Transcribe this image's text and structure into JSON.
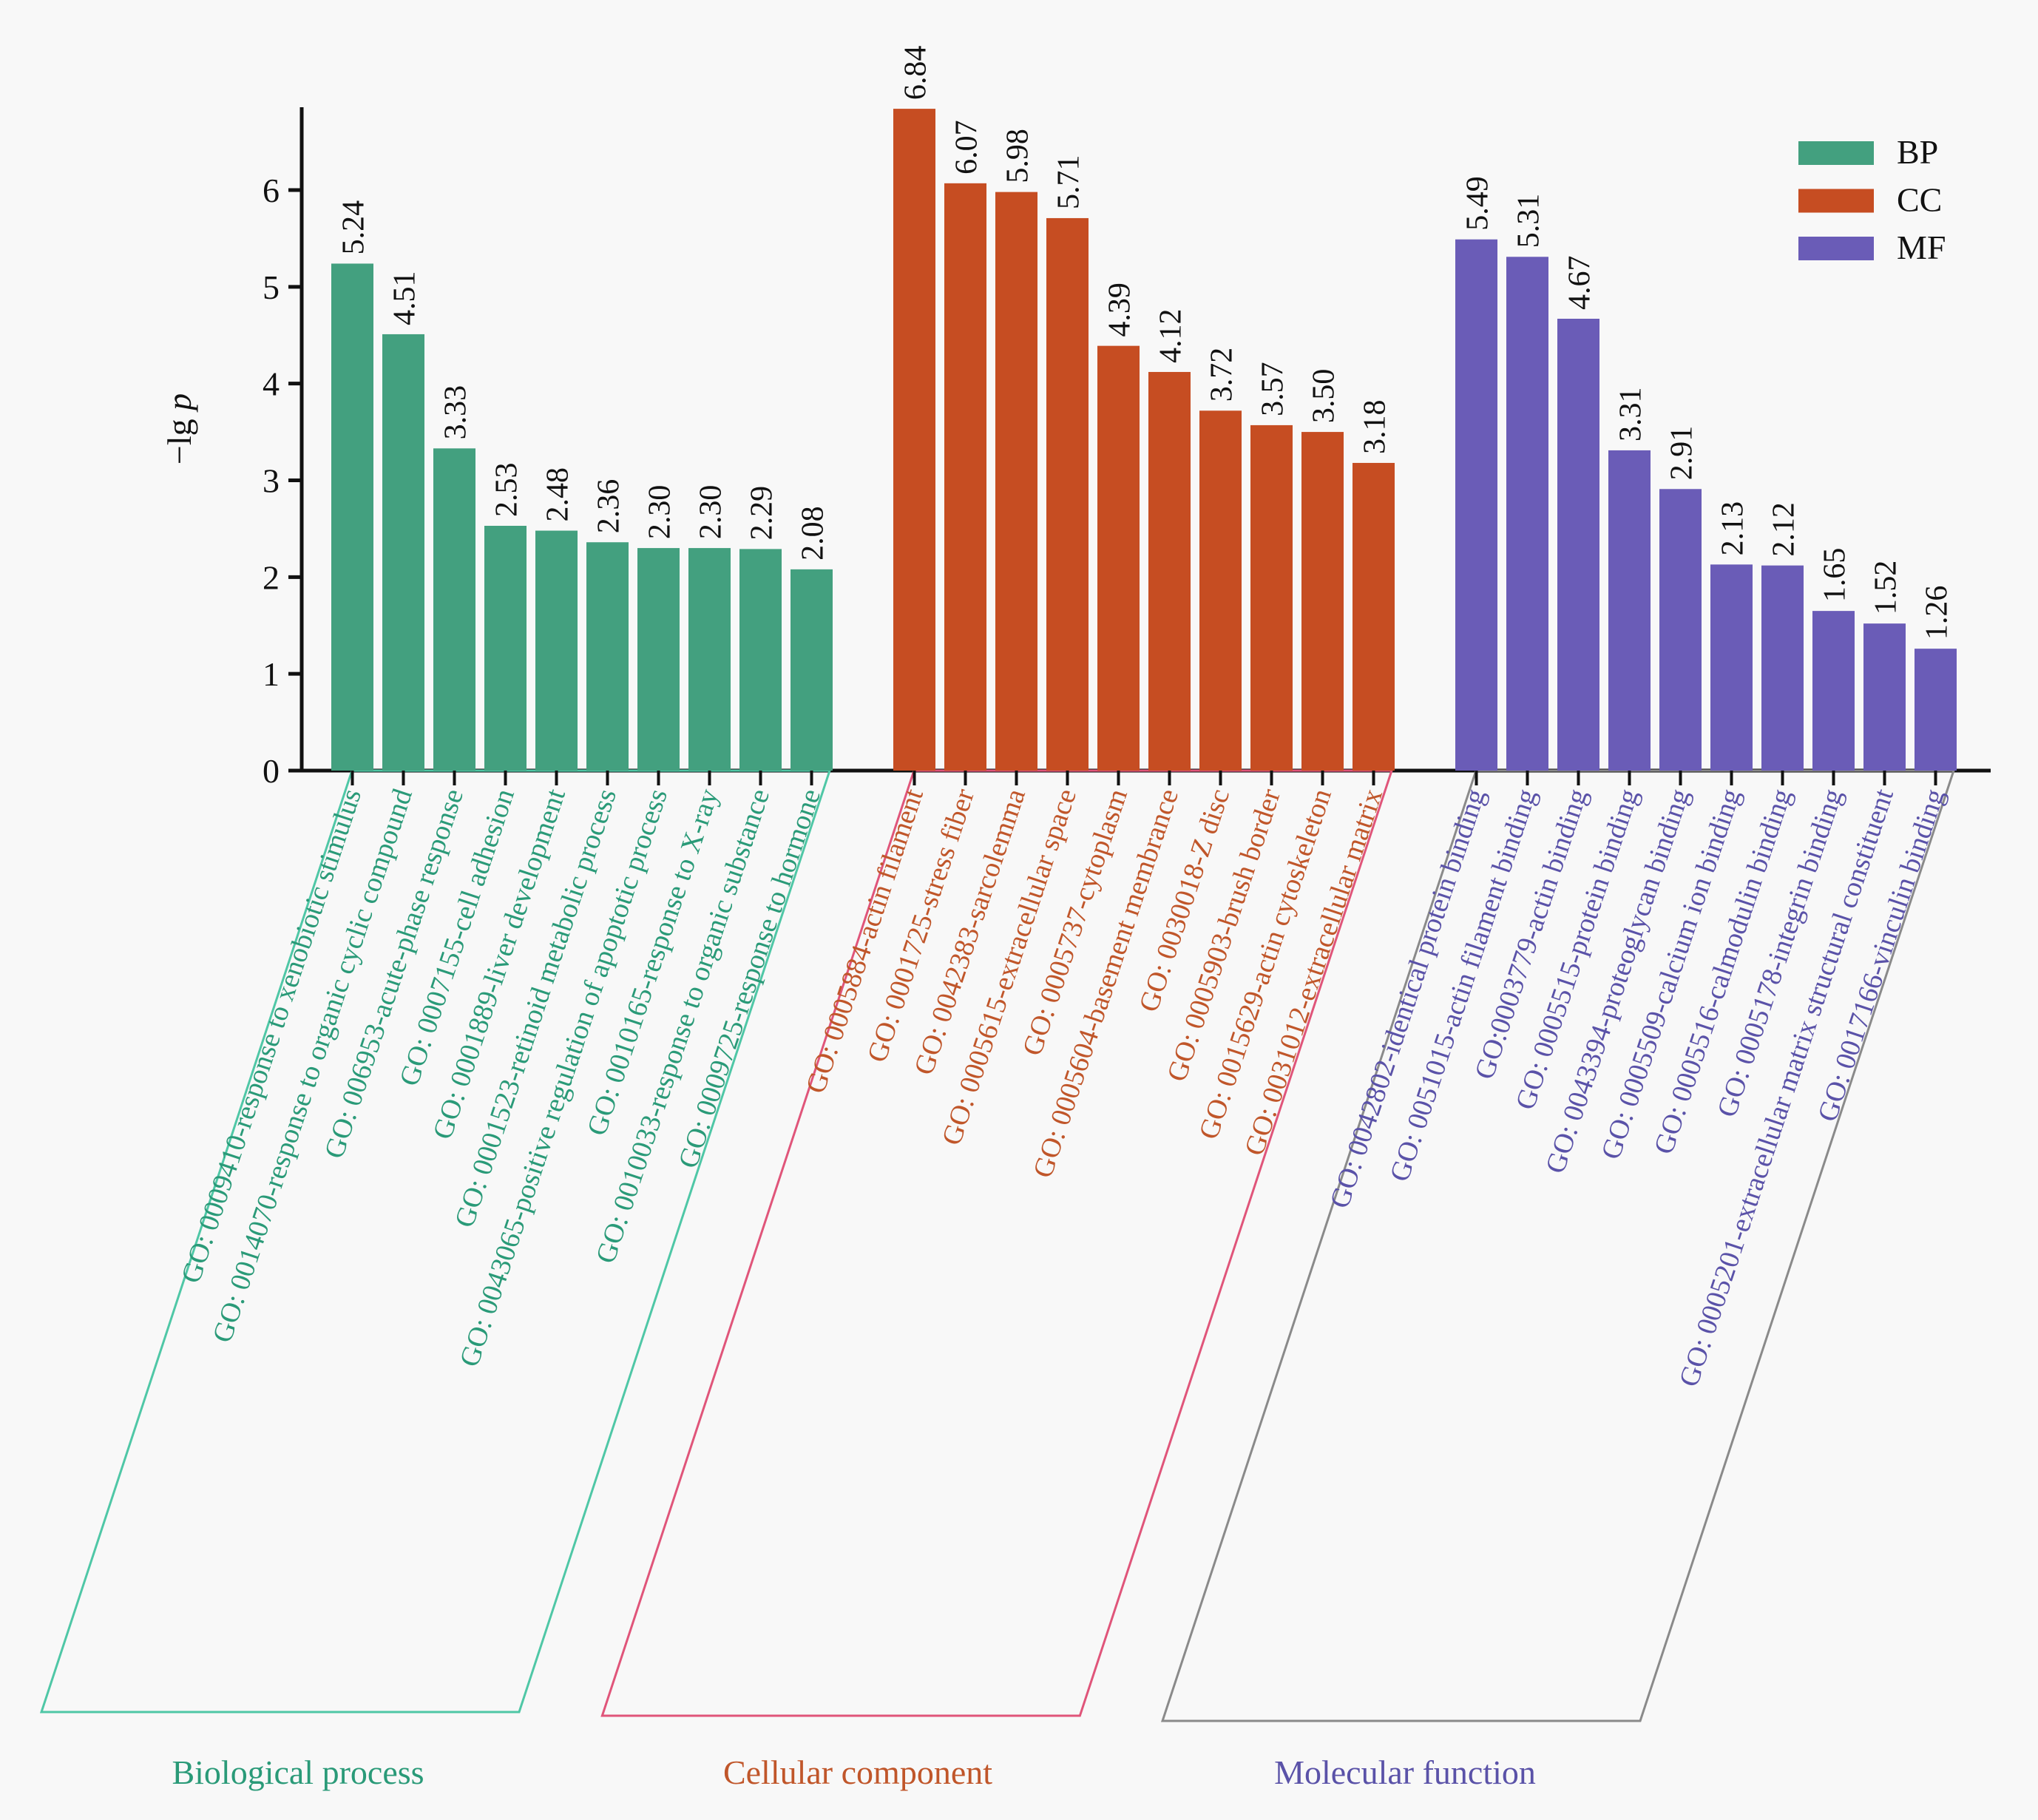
{
  "chart_data": {
    "type": "bar",
    "title": "",
    "xlabel": "",
    "ylabel": "−lg p",
    "ylabel_parts": {
      "prefix": "−lg ",
      "italic": "p"
    },
    "ylim": [
      0,
      6.84
    ],
    "yticks": [
      0,
      1,
      2,
      3,
      4,
      5,
      6
    ],
    "grid": false,
    "legend": {
      "position": "top-right",
      "entries": [
        {
          "name": "BP",
          "color": "#43a07f"
        },
        {
          "name": "CC",
          "color": "#c64d22"
        },
        {
          "name": "MF",
          "color": "#6a5cb7"
        }
      ]
    },
    "groups": [
      {
        "key": "BP",
        "title": "Biological process",
        "color": "#43a07f",
        "label_color": "#2a9a78",
        "box_color": "#4fc7a6",
        "categories": [
          "GO: 0009410-response to xenobiotic stimulus",
          "GO: 0014070-response to organic cyclic compound",
          "GO: 006953-acute-phase response",
          "GO: 0007155-cell adhesion",
          "GO: 0001889-liver development",
          "GO: 0001523-retinoid metabolic process",
          "GO: 0043065-positive regulation of apoptotic process",
          "GO: 0010165-response to X-ray",
          "GO: 0010033-response to organic substance",
          "GO: 0009725-response to hormone"
        ],
        "values": [
          5.24,
          4.51,
          3.33,
          2.53,
          2.48,
          2.36,
          2.3,
          2.3,
          2.29,
          2.08
        ],
        "value_labels": [
          "5.24",
          "4.51",
          "3.33",
          "2.53",
          "2.48",
          "2.36",
          "2.30",
          "2.30",
          "2.29",
          "2.08"
        ]
      },
      {
        "key": "CC",
        "title": "Cellular component",
        "color": "#c64d22",
        "label_color": "#c0562a",
        "box_color": "#e0557a",
        "categories": [
          "GO: 0005884-actin filament",
          "GO: 0001725-stress fiber",
          "GO: 0042383-sarcolemma",
          "GO: 0005615-extracellular space",
          "GO: 0005737-cytoplasm",
          "GO: 0005604-basement membrance",
          "GO: 0030018-Z disc",
          "GO: 0005903-brush border",
          "GO: 0015629-actin cytoskeleton",
          "GO: 0031012-extracellular matrix"
        ],
        "values": [
          6.84,
          6.07,
          5.98,
          5.71,
          4.39,
          4.12,
          3.72,
          3.57,
          3.5,
          3.18
        ],
        "value_labels": [
          "6.84",
          "6.07",
          "5.98",
          "5.71",
          "4.39",
          "4.12",
          "3.72",
          "3.57",
          "3.50",
          "3.18"
        ]
      },
      {
        "key": "MF",
        "title": "Molecular function",
        "color": "#6a5cb7",
        "label_color": "#5a52a8",
        "box_color": "#8a8a8a",
        "categories": [
          "GO: 0042802-identical protein binding",
          "GO: 0051015-actin filament binding",
          "GO:0003779-actin binding",
          "GO: 0005515-protein binding",
          "GO: 0043394-proteoglycan binding",
          "GO: 0005509-calcium ion binding",
          "GO: 0005516-calmodulin binding",
          "GO: 0005178-integrin binding",
          "GO: 0005201-extracellular matrix structural constituent",
          "GO: 0017166-vinculin binding"
        ],
        "values": [
          5.49,
          5.31,
          4.67,
          3.31,
          2.91,
          2.13,
          2.12,
          1.65,
          1.52,
          1.26
        ],
        "value_labels": [
          "5.49",
          "5.31",
          "4.67",
          "3.31",
          "2.91",
          "2.13",
          "2.12",
          "1.65",
          "1.52",
          "1.26"
        ]
      }
    ]
  }
}
